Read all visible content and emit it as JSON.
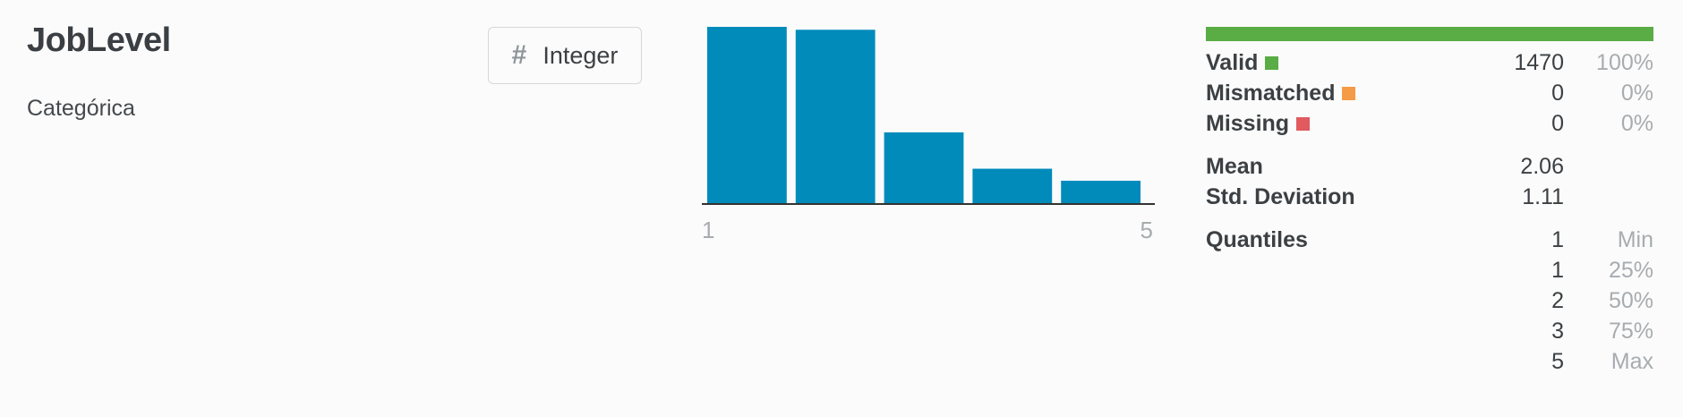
{
  "column": {
    "name": "JobLevel",
    "subtitle": "Categórica",
    "type_icon": "hash-icon",
    "type": "Integer"
  },
  "chart_data": {
    "type": "bar",
    "categories": [
      "1",
      "2",
      "3",
      "4",
      "5"
    ],
    "values": [
      543,
      534,
      218,
      106,
      69
    ],
    "tick_labels": [
      "1",
      "5"
    ],
    "color": "#008bbb"
  },
  "quality": {
    "bar_color": "#5aad44",
    "valid": {
      "label": "Valid",
      "count": "1470",
      "pct": "100%",
      "color": "#5aad44"
    },
    "mismatched": {
      "label": "Mismatched",
      "count": "0",
      "pct": "0%",
      "color": "#f59a46"
    },
    "missing": {
      "label": "Missing",
      "count": "0",
      "pct": "0%",
      "color": "#e05a5f"
    }
  },
  "stats": {
    "mean": {
      "label": "Mean",
      "value": "2.06"
    },
    "std": {
      "label": "Std. Deviation",
      "value": "1.11"
    },
    "quantiles_label": "Quantiles",
    "quantiles": [
      {
        "value": "1",
        "label": "Min"
      },
      {
        "value": "1",
        "label": "25%"
      },
      {
        "value": "2",
        "label": "50%"
      },
      {
        "value": "3",
        "label": "75%"
      },
      {
        "value": "5",
        "label": "Max"
      }
    ]
  }
}
